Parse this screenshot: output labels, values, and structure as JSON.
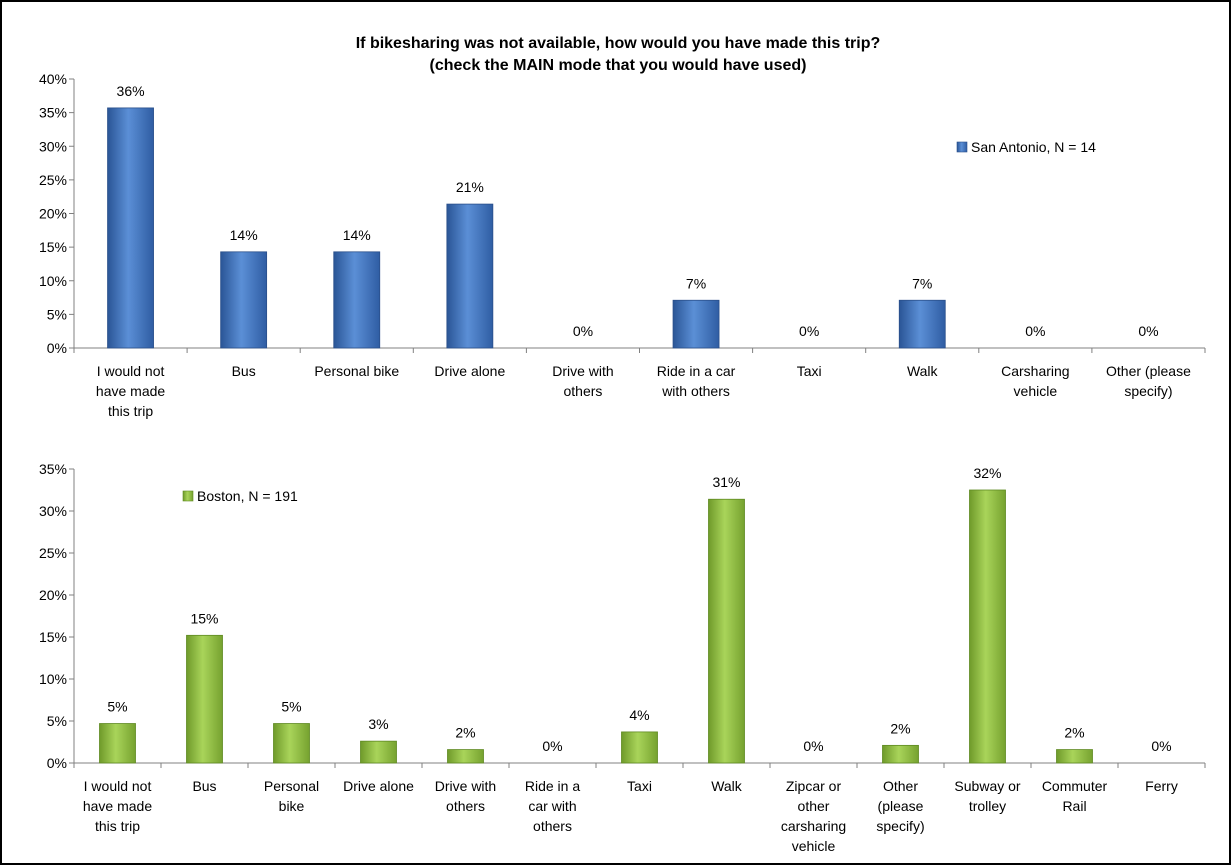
{
  "title_line1": "If bikesharing was not available, how would you have made this trip?",
  "title_line2": "(check the MAIN mode that you would have used)",
  "colors": {
    "san_antonio": "#3d6fb8",
    "boston": "#8db83c",
    "axis": "#808080"
  },
  "chart_data": [
    {
      "type": "bar",
      "categories": [
        [
          "I would not",
          "have made",
          "this trip"
        ],
        [
          "Bus"
        ],
        [
          "Personal bike"
        ],
        [
          "Drive alone"
        ],
        [
          "Drive with",
          "others"
        ],
        [
          "Ride in a car",
          "with others"
        ],
        [
          "Taxi"
        ],
        [
          "Walk"
        ],
        [
          "Carsharing",
          "vehicle"
        ],
        [
          "Other (please",
          "specify)"
        ]
      ],
      "series": [
        {
          "name": "San Antonio, N = 14",
          "values": [
            35.7,
            14.3,
            14.3,
            21.4,
            0,
            7.1,
            0,
            7.1,
            0,
            0
          ]
        }
      ],
      "data_labels": [
        "36%",
        "14%",
        "14%",
        "21%",
        "0%",
        "7%",
        "0%",
        "7%",
        "0%",
        "0%"
      ],
      "ylim": [
        0,
        40
      ],
      "yticks": [
        "0%",
        "5%",
        "10%",
        "15%",
        "20%",
        "25%",
        "30%",
        "35%",
        "40%"
      ],
      "legend_position": "top-right",
      "grid": false
    },
    {
      "type": "bar",
      "categories": [
        [
          "I would not",
          "have made",
          "this trip"
        ],
        [
          "Bus"
        ],
        [
          "Personal",
          "bike"
        ],
        [
          "Drive alone"
        ],
        [
          "Drive with",
          "others"
        ],
        [
          "Ride in a",
          "car with",
          "others"
        ],
        [
          "Taxi"
        ],
        [
          "Walk"
        ],
        [
          "Zipcar or",
          "other",
          "carsharing",
          "vehicle"
        ],
        [
          "Other",
          "(please",
          "specify)"
        ],
        [
          "Subway or",
          "trolley"
        ],
        [
          "Commuter",
          "Rail"
        ],
        [
          "Ferry"
        ]
      ],
      "series": [
        {
          "name": "Boston, N = 191",
          "values": [
            4.7,
            15.2,
            4.7,
            2.6,
            1.6,
            0,
            3.7,
            31.4,
            0,
            2.1,
            32.5,
            1.6,
            0
          ]
        }
      ],
      "data_labels": [
        "5%",
        "15%",
        "5%",
        "3%",
        "2%",
        "0%",
        "4%",
        "31%",
        "0%",
        "2%",
        "32%",
        "2%",
        "0%"
      ],
      "ylim": [
        0,
        35
      ],
      "yticks": [
        "0%",
        "5%",
        "10%",
        "15%",
        "20%",
        "25%",
        "30%",
        "35%"
      ],
      "legend_position": "top-left",
      "grid": false
    }
  ]
}
